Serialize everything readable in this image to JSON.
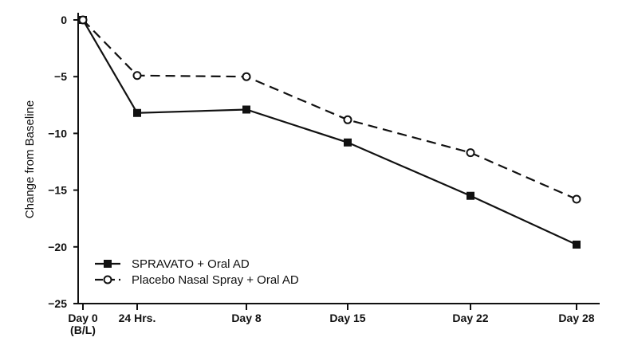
{
  "chart_data": {
    "type": "line",
    "title": "",
    "xlabel": "",
    "ylabel": "Change from Baseline",
    "ylim": [
      -25,
      0
    ],
    "yticks": [
      0,
      -5,
      -10,
      -15,
      -20,
      -25
    ],
    "ytick_labels": [
      "0",
      "−5",
      "−10",
      "−15",
      "−20",
      "−25"
    ],
    "categories": [
      "Day 0|(B/L)",
      "24 Hrs.",
      "Day 8",
      "Day 15",
      "Day 22",
      "Day 28"
    ],
    "x": [
      0,
      1,
      8,
      15,
      22,
      28
    ],
    "grid": false,
    "legend_position": "bottom-left",
    "series": [
      {
        "name": "SPRAVATO + Oral AD",
        "marker": "filled-square",
        "line": "solid",
        "color": "#111111",
        "values": [
          0,
          -8.2,
          -7.9,
          -10.8,
          -15.5,
          -19.8
        ]
      },
      {
        "name": "Placebo Nasal Spray + Oral AD",
        "marker": "open-circle",
        "line": "dashed",
        "color": "#111111",
        "values": [
          0,
          -4.9,
          -5.0,
          -8.8,
          -11.7,
          -15.8
        ]
      }
    ]
  }
}
